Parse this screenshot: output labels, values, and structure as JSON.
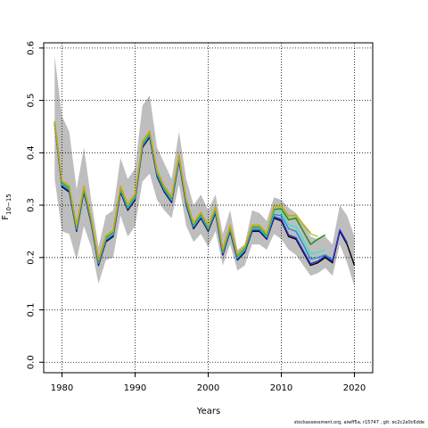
{
  "chart_data": {
    "type": "line",
    "xlabel": "Years",
    "ylabel_main": "F",
    "ylabel_sub": "10−15",
    "xlim": [
      1977.5,
      2022.5
    ],
    "ylim": [
      -0.02,
      0.61
    ],
    "x_ticks": [
      1980,
      1990,
      2000,
      2010,
      2020
    ],
    "x_tick_labels": [
      "1980",
      "1990",
      "2000",
      "2010",
      "2020"
    ],
    "y_ticks": [
      0.0,
      0.1,
      0.2,
      0.3,
      0.4,
      0.5,
      0.6
    ],
    "y_tick_labels": [
      "0.0",
      "0.1",
      "0.2",
      "0.3",
      "0.4",
      "0.5",
      "0.6"
    ],
    "grid": true,
    "band": {
      "color": "#bebebe",
      "x": [
        1979,
        1980,
        1981,
        1982,
        1983,
        1984,
        1985,
        1986,
        1987,
        1988,
        1989,
        1990,
        1991,
        1992,
        1993,
        1994,
        1995,
        1996,
        1997,
        1998,
        1999,
        2000,
        2001,
        2002,
        2003,
        2004,
        2005,
        2006,
        2007,
        2008,
        2009,
        2010,
        2011,
        2012,
        2013,
        2014,
        2015,
        2016,
        2017,
        2018,
        2019,
        2020
      ],
      "upper": [
        0.585,
        0.47,
        0.44,
        0.33,
        0.41,
        0.31,
        0.22,
        0.28,
        0.29,
        0.39,
        0.35,
        0.37,
        0.49,
        0.51,
        0.41,
        0.38,
        0.35,
        0.44,
        0.35,
        0.3,
        0.32,
        0.29,
        0.32,
        0.245,
        0.29,
        0.215,
        0.225,
        0.29,
        0.285,
        0.27,
        0.315,
        0.31,
        0.295,
        0.285,
        0.265,
        0.24,
        0.235,
        0.24,
        0.225,
        0.3,
        0.28,
        0.24
      ],
      "lower": [
        0.35,
        0.25,
        0.245,
        0.195,
        0.26,
        0.22,
        0.15,
        0.195,
        0.2,
        0.28,
        0.24,
        0.26,
        0.345,
        0.36,
        0.31,
        0.29,
        0.275,
        0.34,
        0.26,
        0.23,
        0.245,
        0.22,
        0.25,
        0.185,
        0.225,
        0.175,
        0.185,
        0.225,
        0.225,
        0.215,
        0.245,
        0.235,
        0.215,
        0.205,
        0.185,
        0.165,
        0.17,
        0.18,
        0.165,
        0.225,
        0.19,
        0.145
      ]
    },
    "series": [
      {
        "color": "#000000",
        "width": 1.4,
        "x": [
          1979,
          1980,
          1981,
          1982,
          1983,
          1984,
          1985,
          1986,
          1987,
          1988,
          1989,
          1990,
          1991,
          1992,
          1993,
          1994,
          1995,
          1996,
          1997,
          1998,
          1999,
          2000,
          2001,
          2002,
          2003,
          2004,
          2005,
          2006,
          2007,
          2008,
          2009,
          2010,
          2011,
          2012,
          2013,
          2014,
          2015,
          2016,
          2017,
          2018,
          2019,
          2020
        ],
        "values": [
          0.455,
          0.335,
          0.325,
          0.25,
          0.325,
          0.265,
          0.185,
          0.23,
          0.24,
          0.325,
          0.29,
          0.31,
          0.41,
          0.43,
          0.355,
          0.325,
          0.305,
          0.385,
          0.3,
          0.255,
          0.275,
          0.25,
          0.285,
          0.205,
          0.25,
          0.195,
          0.21,
          0.25,
          0.25,
          0.235,
          0.275,
          0.27,
          0.24,
          0.235,
          0.21,
          0.185,
          0.19,
          0.2,
          0.19,
          0.25,
          0.225,
          0.185
        ]
      },
      {
        "color": "#2b2bd6",
        "width": 1.4,
        "x": [
          1979,
          1980,
          1981,
          1982,
          1983,
          1984,
          1985,
          1986,
          1987,
          1988,
          1989,
          1990,
          1991,
          1992,
          1993,
          1994,
          1995,
          1996,
          1997,
          1998,
          1999,
          2000,
          2001,
          2002,
          2003,
          2004,
          2005,
          2006,
          2007,
          2008,
          2009,
          2010,
          2011,
          2012,
          2013,
          2014,
          2015,
          2016,
          2017,
          2018,
          2019
        ],
        "values": [
          0.455,
          0.337,
          0.327,
          0.252,
          0.327,
          0.267,
          0.187,
          0.232,
          0.242,
          0.327,
          0.292,
          0.312,
          0.412,
          0.432,
          0.357,
          0.327,
          0.307,
          0.387,
          0.302,
          0.257,
          0.277,
          0.252,
          0.287,
          0.207,
          0.252,
          0.197,
          0.212,
          0.252,
          0.252,
          0.237,
          0.278,
          0.273,
          0.243,
          0.238,
          0.213,
          0.188,
          0.193,
          0.203,
          0.193,
          0.253,
          0.228
        ]
      },
      {
        "color": "#1e90d0",
        "width": 1.4,
        "x": [
          1979,
          1980,
          1981,
          1982,
          1983,
          1984,
          1985,
          1986,
          1987,
          1988,
          1989,
          1990,
          1991,
          1992,
          1993,
          1994,
          1995,
          1996,
          1997,
          1998,
          1999,
          2000,
          2001,
          2002,
          2003,
          2004,
          2005,
          2006,
          2007,
          2008,
          2009,
          2010,
          2011,
          2012,
          2013,
          2014,
          2015,
          2016,
          2017
        ],
        "values": [
          0.456,
          0.339,
          0.329,
          0.254,
          0.329,
          0.269,
          0.189,
          0.234,
          0.244,
          0.329,
          0.294,
          0.314,
          0.414,
          0.434,
          0.359,
          0.329,
          0.309,
          0.389,
          0.304,
          0.259,
          0.279,
          0.254,
          0.289,
          0.209,
          0.254,
          0.199,
          0.214,
          0.254,
          0.254,
          0.239,
          0.282,
          0.28,
          0.255,
          0.25,
          0.225,
          0.197,
          0.2,
          0.205,
          0.196
        ]
      },
      {
        "color": "#40e0d0",
        "width": 1.4,
        "x": [
          1979,
          1980,
          1981,
          1982,
          1983,
          1984,
          1985,
          1986,
          1987,
          1988,
          1989,
          1990,
          1991,
          1992,
          1993,
          1994,
          1995,
          1996,
          1997,
          1998,
          1999,
          2000,
          2001,
          2002,
          2003,
          2004,
          2005,
          2006,
          2007,
          2008,
          2009,
          2010,
          2011,
          2012,
          2013,
          2014,
          2015,
          2016
        ],
        "values": [
          0.457,
          0.341,
          0.331,
          0.256,
          0.331,
          0.271,
          0.191,
          0.236,
          0.246,
          0.331,
          0.296,
          0.316,
          0.416,
          0.436,
          0.361,
          0.331,
          0.311,
          0.391,
          0.306,
          0.261,
          0.281,
          0.256,
          0.291,
          0.211,
          0.256,
          0.201,
          0.216,
          0.256,
          0.256,
          0.241,
          0.287,
          0.287,
          0.263,
          0.258,
          0.235,
          0.207,
          0.21,
          0.215
        ]
      },
      {
        "color": "#2e8b2e",
        "width": 1.6,
        "x": [
          1979,
          1980,
          1981,
          1982,
          1983,
          1984,
          1985,
          1986,
          1987,
          1988,
          1989,
          1990,
          1991,
          1992,
          1993,
          1994,
          1995,
          1996,
          1997,
          1998,
          1999,
          2000,
          2001,
          2002,
          2003,
          2004,
          2005,
          2006,
          2007,
          2008,
          2009,
          2010,
          2011,
          2012,
          2013,
          2014,
          2015,
          2016
        ],
        "values": [
          0.458,
          0.343,
          0.333,
          0.258,
          0.333,
          0.273,
          0.193,
          0.238,
          0.248,
          0.333,
          0.298,
          0.318,
          0.418,
          0.438,
          0.363,
          0.333,
          0.313,
          0.393,
          0.308,
          0.263,
          0.283,
          0.258,
          0.293,
          0.213,
          0.258,
          0.203,
          0.218,
          0.258,
          0.258,
          0.243,
          0.292,
          0.293,
          0.272,
          0.275,
          0.25,
          0.225,
          0.235,
          0.243
        ]
      },
      {
        "color": "#9acd32",
        "width": 1.4,
        "x": [
          1979,
          1980,
          1981,
          1982,
          1983,
          1984,
          1985,
          1986,
          1987,
          1988,
          1989,
          1990,
          1991,
          1992,
          1993,
          1994,
          1995,
          1996,
          1997,
          1998,
          1999,
          2000,
          2001,
          2002,
          2003,
          2004,
          2005,
          2006,
          2007,
          2008,
          2009,
          2010,
          2011,
          2012,
          2013,
          2014,
          2015
        ],
        "values": [
          0.46,
          0.345,
          0.335,
          0.26,
          0.335,
          0.275,
          0.195,
          0.24,
          0.25,
          0.335,
          0.3,
          0.32,
          0.42,
          0.44,
          0.365,
          0.335,
          0.315,
          0.395,
          0.31,
          0.265,
          0.285,
          0.26,
          0.295,
          0.215,
          0.26,
          0.205,
          0.22,
          0.26,
          0.26,
          0.245,
          0.296,
          0.297,
          0.278,
          0.279,
          0.262,
          0.245,
          0.24
        ]
      },
      {
        "color": "#d4a017",
        "width": 1.2,
        "x": [
          1979,
          1980,
          1981,
          1982,
          1983,
          1984,
          1985,
          1986,
          1987,
          1988,
          1989,
          1990,
          1991,
          1992,
          1993,
          1994,
          1995,
          1996,
          1997,
          1998,
          1999,
          2000,
          2001,
          2002,
          2003,
          2004,
          2005,
          2006,
          2007,
          2008,
          2009,
          2010,
          2011,
          2012,
          2013,
          2014
        ],
        "values": [
          0.461,
          0.347,
          0.337,
          0.262,
          0.337,
          0.277,
          0.197,
          0.242,
          0.252,
          0.337,
          0.302,
          0.322,
          0.422,
          0.442,
          0.367,
          0.337,
          0.317,
          0.397,
          0.312,
          0.267,
          0.287,
          0.262,
          0.297,
          0.217,
          0.262,
          0.207,
          0.222,
          0.262,
          0.262,
          0.247,
          0.298,
          0.299,
          0.28,
          0.281,
          0.264,
          0.247
        ]
      }
    ]
  },
  "footer": {
    "note": "stockassessment.org, aiwff5a, r15747 , git: ec2c2a0c6dde"
  }
}
